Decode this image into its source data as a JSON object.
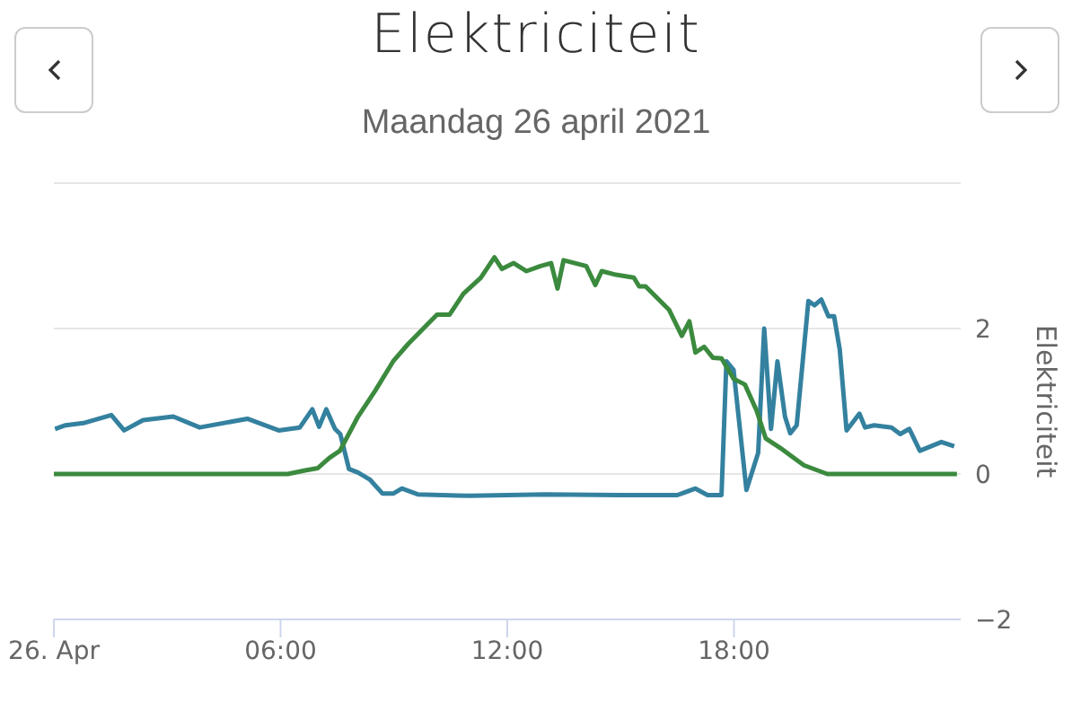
{
  "chart_data": {
    "type": "line",
    "title": "Elektriciteit",
    "subtitle": "Maandag 26 april 2021",
    "ylabel": "Elektriciteit",
    "xlim": [
      0,
      24
    ],
    "xticks": [
      {
        "value": 0,
        "label": "26. Apr"
      },
      {
        "value": 6,
        "label": "06:00"
      },
      {
        "value": 12,
        "label": "12:00"
      },
      {
        "value": 18,
        "label": "18:00"
      }
    ],
    "ylim": [
      -2,
      4
    ],
    "yticks": [
      {
        "value": -2,
        "label": "−2"
      },
      0,
      2,
      {
        "value": 4,
        "label": null
      }
    ],
    "grid": "y",
    "marker": "none",
    "series": [
      {
        "color": "#34819f",
        "x": [
          0.03,
          0.31,
          0.78,
          1.52,
          1.86,
          2.36,
          3.16,
          3.86,
          5.12,
          5.95,
          6.51,
          6.84,
          7.02,
          7.21,
          7.44,
          7.58,
          7.81,
          8.05,
          8.37,
          8.7,
          8.98,
          9.21,
          9.63,
          11,
          13,
          15,
          16.5,
          16.98,
          17.3,
          17.67,
          17.8,
          17.99,
          18.33,
          18.64,
          18.8,
          18.98,
          19.15,
          19.35,
          19.49,
          19.66,
          19.97,
          20.13,
          20.31,
          20.5,
          20.65,
          20.8,
          20.98,
          21.32,
          21.47,
          21.71,
          22.17,
          22.4,
          22.64,
          22.92,
          23.49,
          23.83
        ],
        "values": [
          0.62,
          0.67,
          0.7,
          0.81,
          0.6,
          0.74,
          0.79,
          0.64,
          0.76,
          0.6,
          0.64,
          0.89,
          0.65,
          0.89,
          0.62,
          0.55,
          0.07,
          0.02,
          -0.08,
          -0.27,
          -0.27,
          -0.2,
          -0.28,
          -0.3,
          -0.28,
          -0.29,
          -0.29,
          -0.2,
          -0.29,
          -0.29,
          1.55,
          1.43,
          -0.22,
          0.29,
          2.0,
          0.62,
          1.55,
          0.79,
          0.56,
          0.67,
          2.38,
          2.32,
          2.4,
          2.17,
          2.17,
          1.71,
          0.6,
          0.83,
          0.64,
          0.67,
          0.64,
          0.55,
          0.62,
          0.32,
          0.44,
          0.38
        ]
      },
      {
        "color": "#3b8a3e",
        "x": [
          0,
          6.19,
          6.65,
          6.98,
          7.29,
          7.57,
          8.05,
          8.51,
          8.98,
          9.38,
          10.14,
          10.47,
          10.84,
          11.3,
          11.66,
          11.86,
          12.17,
          12.51,
          12.88,
          13.16,
          13.33,
          13.49,
          14.09,
          14.33,
          14.5,
          14.88,
          15.35,
          15.49,
          15.66,
          16.28,
          16.62,
          16.82,
          16.98,
          17.21,
          17.44,
          17.67,
          17.99,
          18.29,
          18.6,
          18.84,
          19.22,
          19.85,
          20.47,
          23.9
        ],
        "values": [
          0,
          0,
          0.05,
          0.08,
          0.22,
          0.32,
          0.79,
          1.15,
          1.55,
          1.79,
          2.19,
          2.19,
          2.48,
          2.7,
          2.98,
          2.82,
          2.9,
          2.79,
          2.86,
          2.9,
          2.55,
          2.94,
          2.86,
          2.6,
          2.79,
          2.74,
          2.7,
          2.58,
          2.58,
          2.26,
          1.9,
          2.1,
          1.67,
          1.75,
          1.6,
          1.59,
          1.31,
          1.23,
          0.87,
          0.49,
          0.36,
          0.12,
          0,
          0
        ]
      }
    ]
  }
}
